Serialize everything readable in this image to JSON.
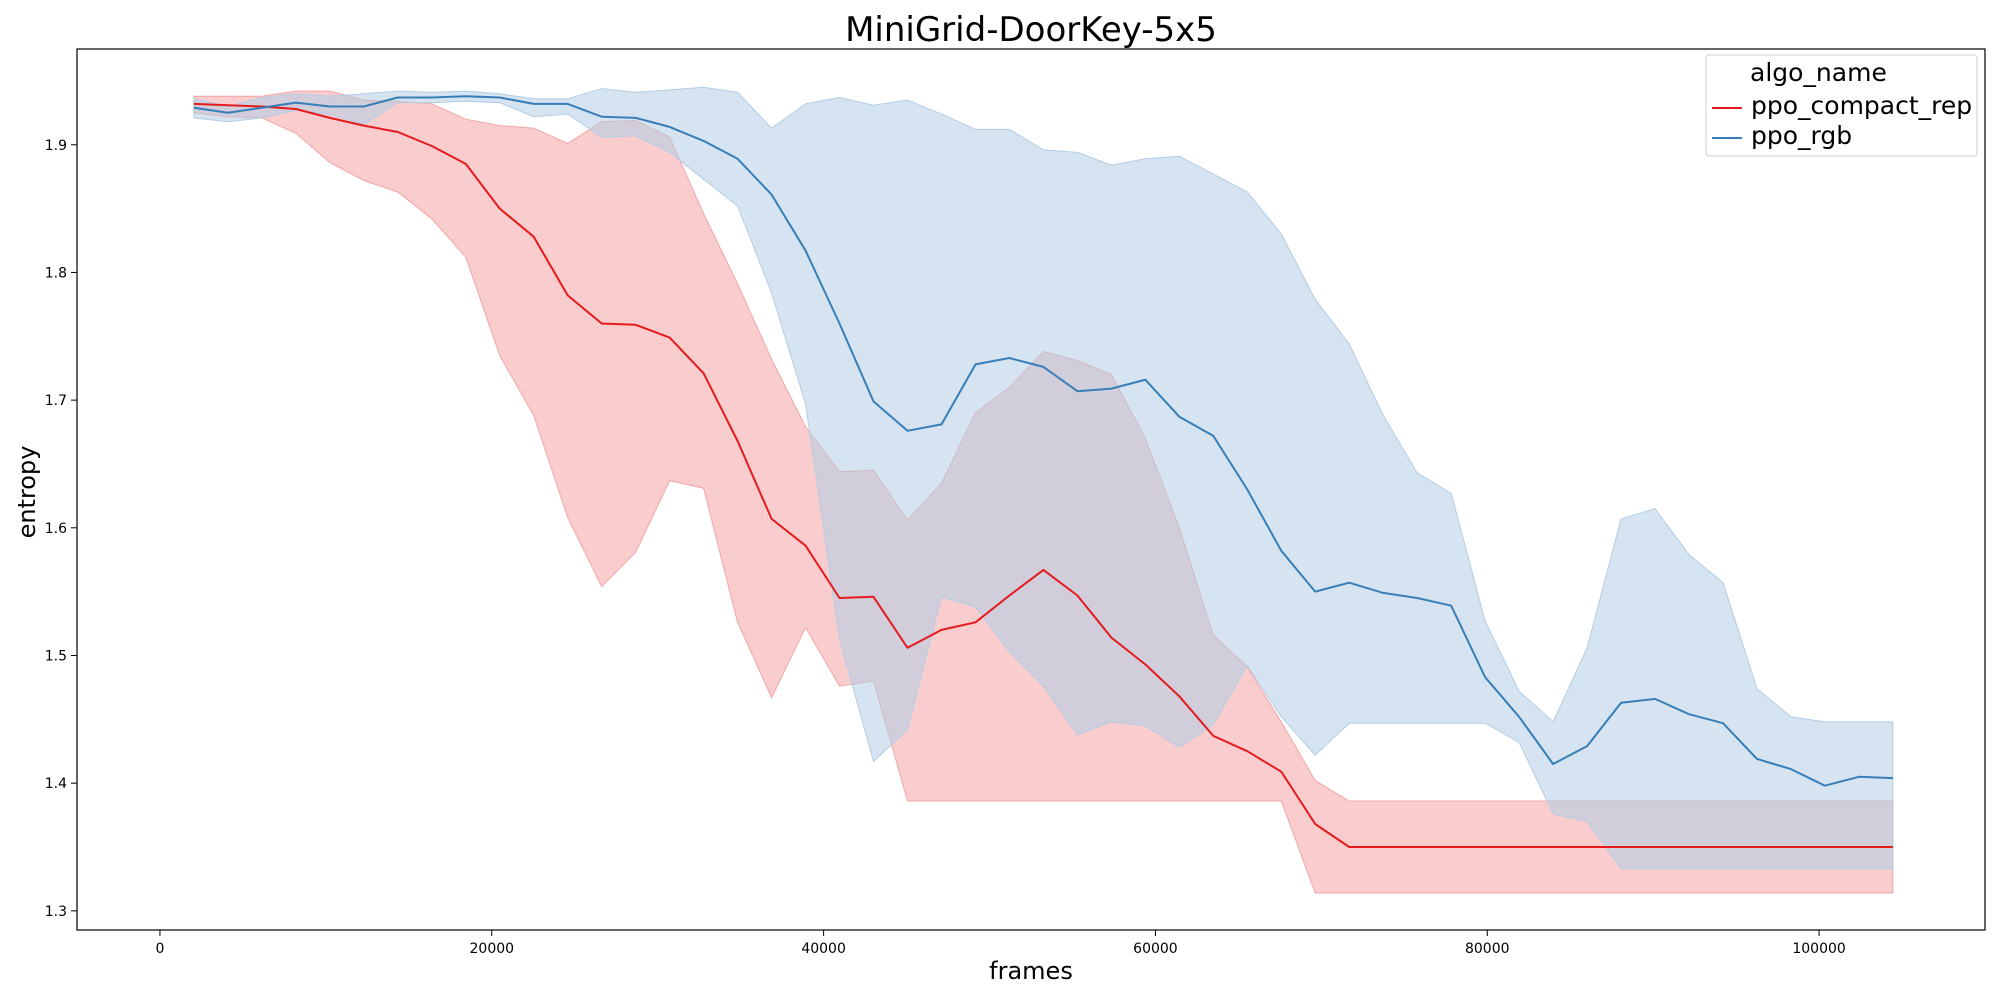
{
  "chart_data": {
    "type": "line",
    "title": "MiniGrid-DoorKey-5x5",
    "xlabel": "frames",
    "ylabel": "entropy",
    "xlim": [
      -5000,
      110000
    ],
    "ylim": [
      1.285,
      1.975
    ],
    "xticks": [
      0,
      20000,
      40000,
      60000,
      80000,
      100000
    ],
    "yticks": [
      1.3,
      1.4,
      1.5,
      1.6,
      1.7,
      1.8,
      1.9
    ],
    "grid": false,
    "legend": {
      "title": "algo_name",
      "placement": "top-right"
    },
    "series": [
      {
        "name": "ppo_compact_rep",
        "color": "#e41a1c",
        "band_color": "#f4a4a6",
        "x": [
          2048,
          4096,
          6144,
          8192,
          10240,
          12288,
          14336,
          16384,
          18432,
          20480,
          22528,
          24576,
          26624,
          28672,
          30720,
          32768,
          34816,
          36864,
          38912,
          40960,
          43008,
          45056,
          47104,
          49152,
          51200,
          53248,
          55296,
          57344,
          59392,
          61440,
          63488,
          65536,
          67584,
          69632,
          71680,
          73728,
          75776,
          77824,
          79872,
          81920,
          83968,
          86016,
          88064,
          90112,
          92160,
          94208,
          96256,
          98304,
          100352,
          102400,
          104448
        ],
        "y": [
          1.932,
          1.931,
          1.93,
          1.928,
          1.921,
          1.915,
          1.91,
          1.899,
          1.885,
          1.85,
          1.828,
          1.782,
          1.76,
          1.759,
          1.749,
          1.721,
          1.668,
          1.607,
          1.586,
          1.545,
          1.546,
          1.506,
          1.52,
          1.526,
          1.547,
          1.567,
          1.547,
          1.514,
          1.493,
          1.468,
          1.437,
          1.425,
          1.409,
          1.368,
          1.35,
          1.35,
          1.35,
          1.35,
          1.35,
          1.35,
          1.35,
          1.35,
          1.35,
          1.35,
          1.35,
          1.35,
          1.35,
          1.35,
          1.35,
          1.35,
          1.35
        ],
        "lower": [
          1.925,
          1.922,
          1.921,
          1.909,
          1.886,
          1.872,
          1.863,
          1.842,
          1.812,
          1.735,
          1.688,
          1.608,
          1.554,
          1.581,
          1.637,
          1.631,
          1.526,
          1.467,
          1.522,
          1.476,
          1.48,
          1.386,
          1.386,
          1.386,
          1.386,
          1.386,
          1.386,
          1.386,
          1.386,
          1.386,
          1.386,
          1.386,
          1.386,
          1.314,
          1.314,
          1.314,
          1.314,
          1.314,
          1.314,
          1.314,
          1.314,
          1.314,
          1.314,
          1.314,
          1.314,
          1.314,
          1.314,
          1.314,
          1.314,
          1.314,
          1.314
        ],
        "upper": [
          1.938,
          1.938,
          1.938,
          1.942,
          1.942,
          1.935,
          1.934,
          1.932,
          1.92,
          1.915,
          1.913,
          1.901,
          1.918,
          1.919,
          1.906,
          1.846,
          1.791,
          1.732,
          1.679,
          1.644,
          1.645,
          1.606,
          1.635,
          1.69,
          1.71,
          1.738,
          1.731,
          1.72,
          1.67,
          1.6,
          1.516,
          1.491,
          1.448,
          1.402,
          1.386,
          1.386,
          1.386,
          1.386,
          1.386,
          1.386,
          1.386,
          1.386,
          1.386,
          1.386,
          1.386,
          1.386,
          1.386,
          1.386,
          1.386,
          1.386,
          1.386
        ]
      },
      {
        "name": "ppo_rgb",
        "color": "#377eb8",
        "band_color": "#b2cde4",
        "x": [
          2048,
          4096,
          6144,
          8192,
          10240,
          12288,
          14336,
          16384,
          18432,
          20480,
          22528,
          24576,
          26624,
          28672,
          30720,
          32768,
          34816,
          36864,
          38912,
          40960,
          43008,
          45056,
          47104,
          49152,
          51200,
          53248,
          55296,
          57344,
          59392,
          61440,
          63488,
          65536,
          67584,
          69632,
          71680,
          73728,
          75776,
          77824,
          79872,
          81920,
          83968,
          86016,
          88064,
          90112,
          92160,
          94208,
          96256,
          98304,
          100352,
          102400,
          104448
        ],
        "y": [
          1.929,
          1.925,
          1.929,
          1.933,
          1.93,
          1.93,
          1.937,
          1.937,
          1.938,
          1.937,
          1.932,
          1.932,
          1.922,
          1.921,
          1.914,
          1.903,
          1.889,
          1.861,
          1.817,
          1.76,
          1.699,
          1.676,
          1.681,
          1.728,
          1.733,
          1.726,
          1.707,
          1.709,
          1.716,
          1.687,
          1.672,
          1.63,
          1.582,
          1.55,
          1.557,
          1.549,
          1.545,
          1.539,
          1.483,
          1.452,
          1.415,
          1.429,
          1.463,
          1.466,
          1.454,
          1.447,
          1.419,
          1.411,
          1.398,
          1.405,
          1.404
        ],
        "lower": [
          1.921,
          1.918,
          1.921,
          1.927,
          1.924,
          1.916,
          1.933,
          1.933,
          1.934,
          1.933,
          1.922,
          1.924,
          1.906,
          1.907,
          1.894,
          1.873,
          1.852,
          1.784,
          1.697,
          1.513,
          1.417,
          1.442,
          1.546,
          1.538,
          1.503,
          1.476,
          1.438,
          1.448,
          1.445,
          1.428,
          1.446,
          1.492,
          1.452,
          1.422,
          1.447,
          1.447,
          1.447,
          1.447,
          1.447,
          1.432,
          1.376,
          1.37,
          1.333,
          1.333,
          1.333,
          1.333,
          1.333,
          1.333,
          1.333,
          1.333,
          1.333
        ],
        "upper": [
          1.936,
          1.93,
          1.937,
          1.94,
          1.938,
          1.94,
          1.942,
          1.941,
          1.942,
          1.94,
          1.936,
          1.936,
          1.944,
          1.941,
          1.943,
          1.945,
          1.941,
          1.913,
          1.932,
          1.937,
          1.931,
          1.935,
          1.924,
          1.912,
          1.912,
          1.896,
          1.894,
          1.884,
          1.889,
          1.891,
          1.877,
          1.863,
          1.83,
          1.779,
          1.744,
          1.688,
          1.643,
          1.627,
          1.527,
          1.472,
          1.448,
          1.506,
          1.607,
          1.615,
          1.579,
          1.557,
          1.474,
          1.452,
          1.448,
          1.448,
          1.448
        ]
      }
    ]
  }
}
